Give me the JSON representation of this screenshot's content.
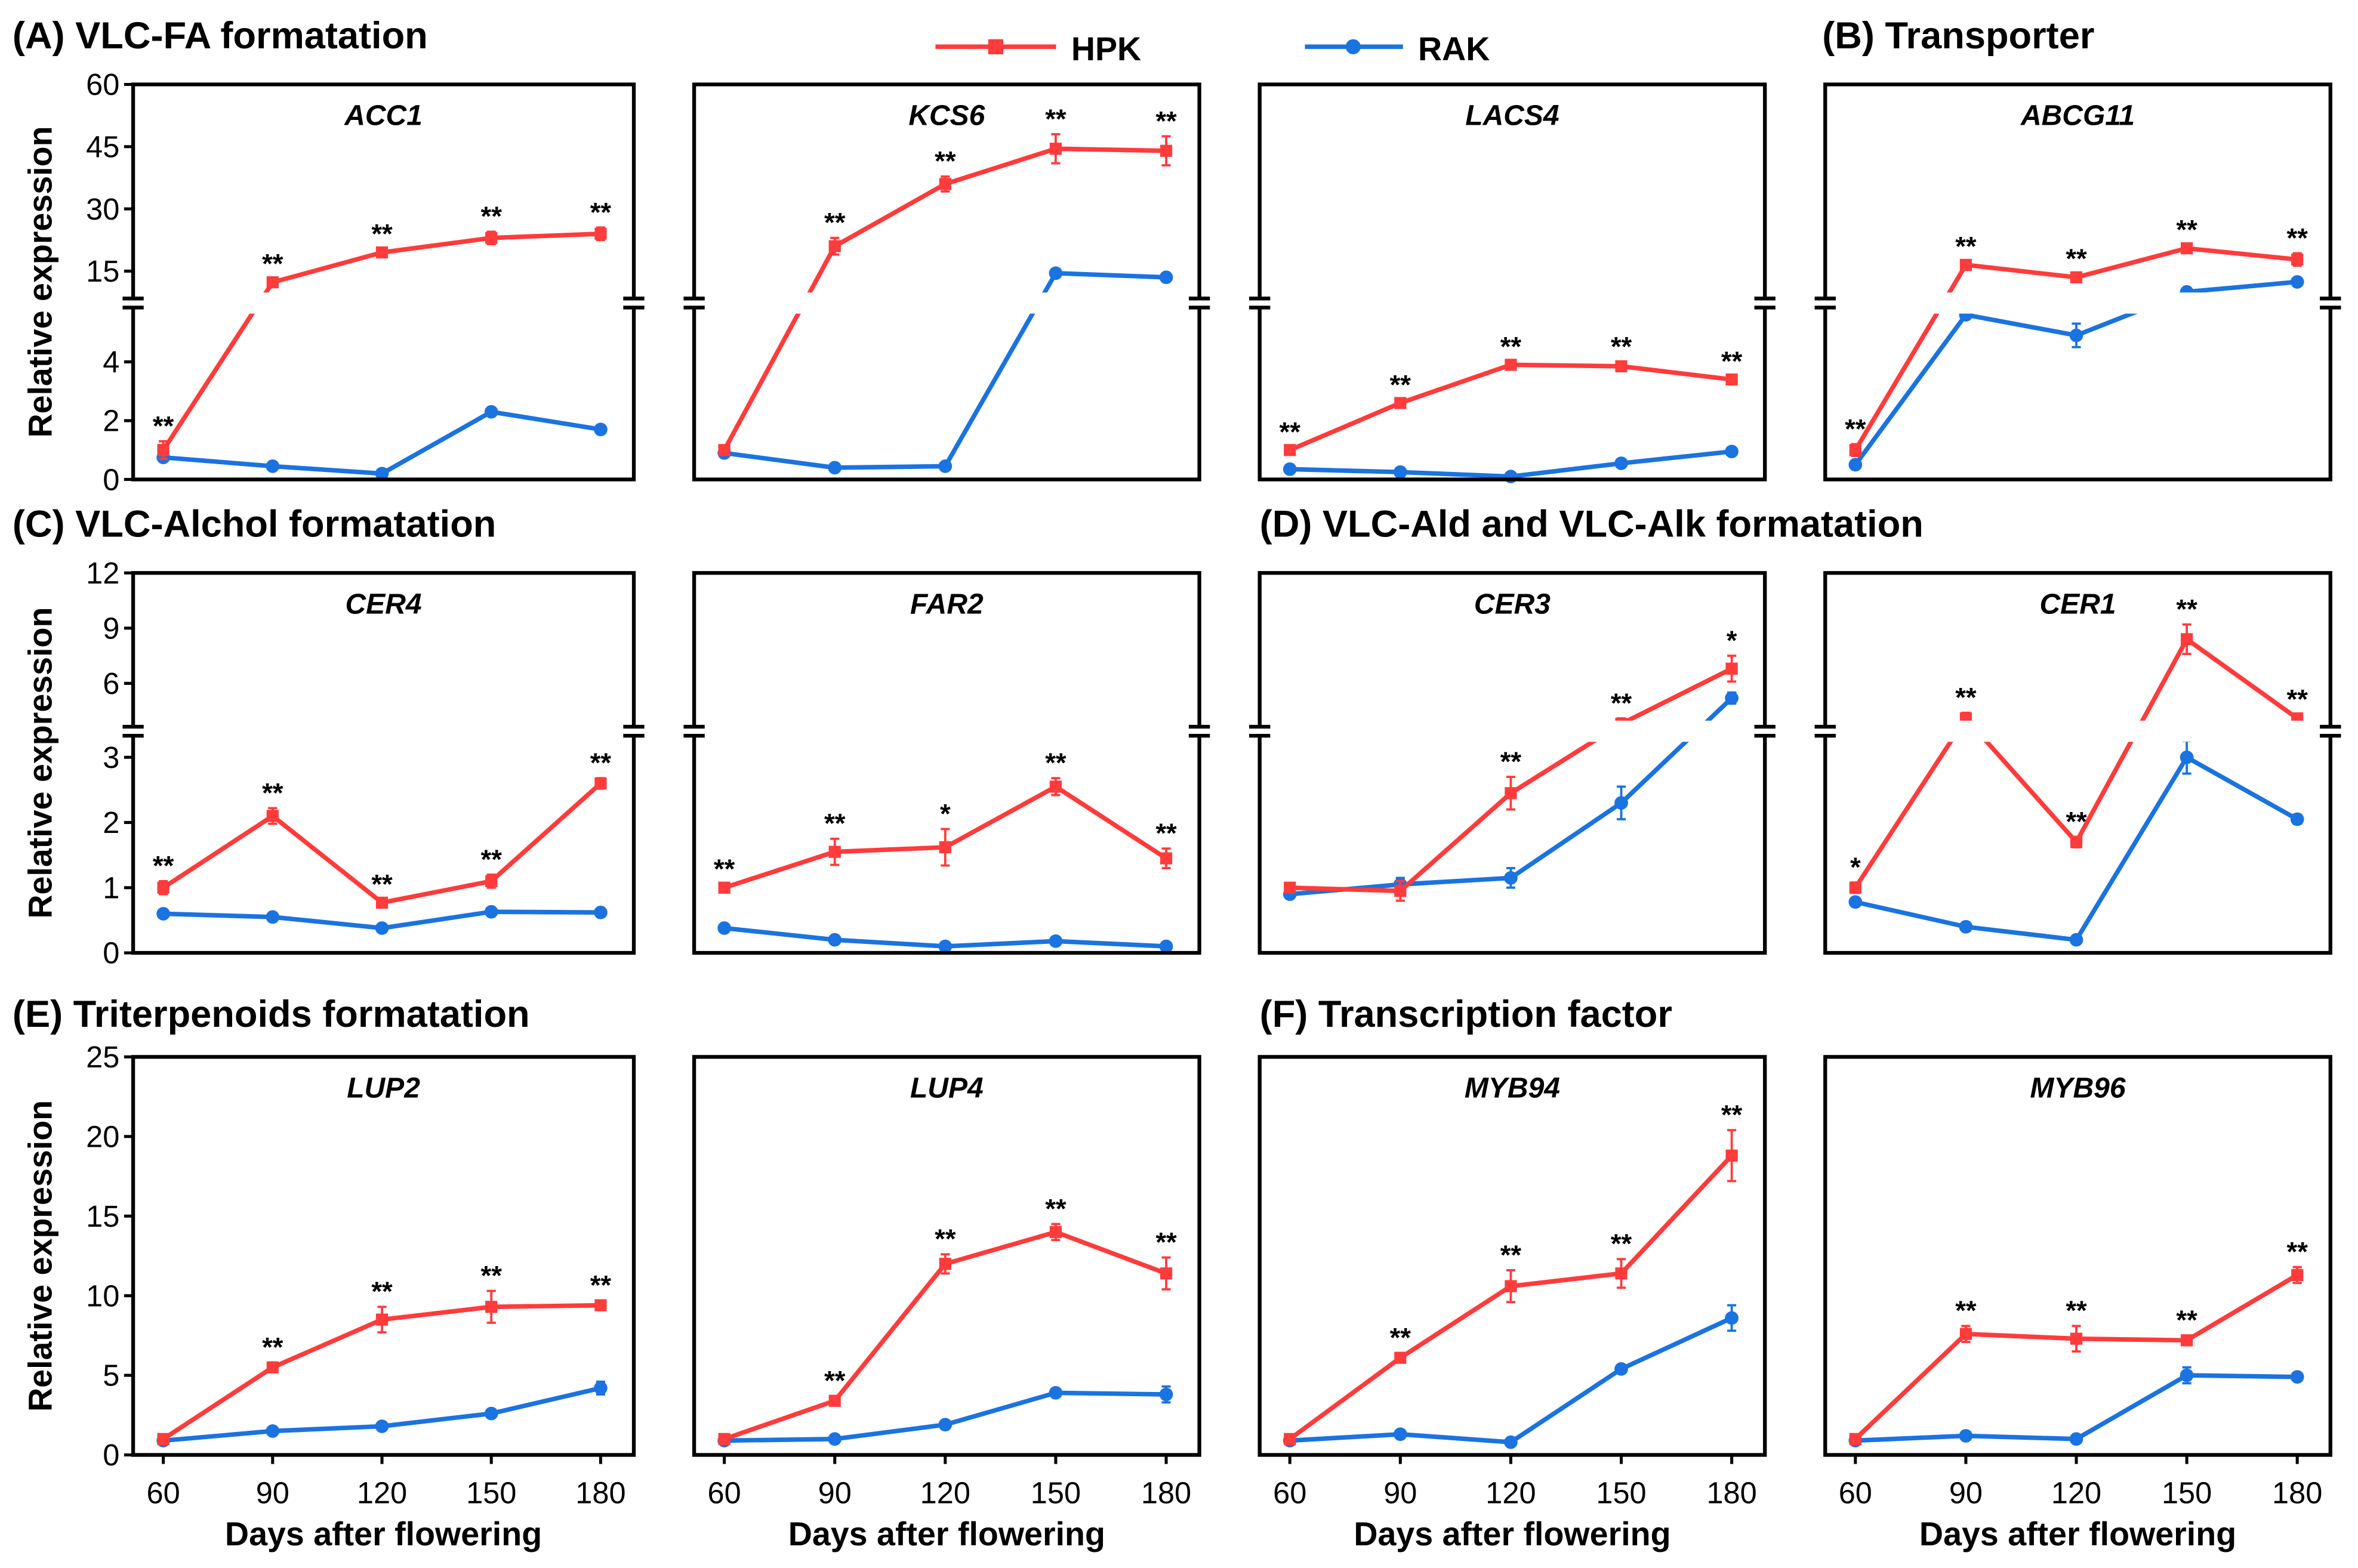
{
  "legend": {
    "hpk": "HPK",
    "rak": "RAK"
  },
  "colors": {
    "hpk": "#ff3b3b",
    "rak": "#1a73e0"
  },
  "sections": [
    "(A) VLC-FA formatation",
    "(B) Transporter",
    "(C) VLC-Alchol formatation",
    "(D) VLC-Ald and VLC-Alk formatation",
    "(E) Triterpenoids formatation",
    "(F) Transcription factor"
  ],
  "chart_data": [
    {
      "type": "line",
      "row": 1,
      "title": "ACC1",
      "xlabel": "",
      "ylabel": "Relative expression",
      "x": [
        60,
        90,
        120,
        150,
        180
      ],
      "y_axis": {
        "broken": true,
        "lower_ticks": [
          0,
          2,
          4
        ],
        "upper_ticks": [
          15,
          30,
          45,
          60
        ]
      },
      "series": [
        {
          "name": "HPK",
          "values": [
            1,
            12.3,
            19.5,
            23,
            24
          ],
          "errors": [
            0.3,
            0.8,
            0.8,
            1.5,
            1.5
          ],
          "significance": [
            "**",
            "**",
            "**",
            "**",
            "**"
          ]
        },
        {
          "name": "RAK",
          "values": [
            0.75,
            0.45,
            0.2,
            2.3,
            1.7
          ],
          "errors": [
            0.08,
            0.05,
            0.05,
            0.1,
            0.1
          ]
        }
      ]
    },
    {
      "type": "line",
      "row": 1,
      "title": "KCS6",
      "xlabel": "",
      "ylabel": "",
      "x": [
        60,
        90,
        120,
        150,
        180
      ],
      "y_axis": {
        "broken": true,
        "lower_ticks": [
          0,
          2,
          4
        ],
        "upper_ticks": [
          15,
          30,
          45,
          60
        ]
      },
      "series": [
        {
          "name": "HPK",
          "values": [
            1,
            21,
            36,
            44.5,
            44
          ],
          "errors": [
            0.1,
            2,
            1.8,
            3.5,
            3.5
          ],
          "significance": [
            "",
            "**",
            "**",
            "**",
            "**"
          ]
        },
        {
          "name": "RAK",
          "values": [
            0.9,
            0.4,
            0.45,
            14.5,
            13.5
          ],
          "errors": [
            0.05,
            0.05,
            0.05,
            1,
            0.7
          ]
        }
      ]
    },
    {
      "type": "line",
      "row": 1,
      "title": "LACS4",
      "xlabel": "",
      "ylabel": "",
      "x": [
        60,
        90,
        120,
        150,
        180
      ],
      "y_axis": {
        "broken": true,
        "lower_ticks": [
          0,
          2,
          4
        ],
        "upper_ticks": [
          15,
          30,
          45,
          60
        ]
      },
      "series": [
        {
          "name": "HPK",
          "values": [
            1,
            2.6,
            3.9,
            3.85,
            3.4
          ],
          "errors": [
            0.1,
            0.1,
            0.1,
            0.15,
            0.1
          ],
          "significance": [
            "**",
            "**",
            "**",
            "**",
            "**"
          ]
        },
        {
          "name": "RAK",
          "values": [
            0.35,
            0.25,
            0.1,
            0.55,
            0.95
          ],
          "errors": [
            0.04,
            0.03,
            0.03,
            0.05,
            0.06
          ]
        }
      ]
    },
    {
      "type": "line",
      "row": 1,
      "title": "ABCG11",
      "xlabel": "",
      "ylabel": "",
      "x": [
        60,
        90,
        120,
        150,
        180
      ],
      "y_axis": {
        "broken": true,
        "lower_ticks": [
          0,
          2,
          4
        ],
        "upper_ticks": [
          15,
          30,
          45,
          60
        ]
      },
      "series": [
        {
          "name": "HPK",
          "values": [
            1,
            16.5,
            13.5,
            20.5,
            17.8
          ],
          "errors": [
            0.2,
            0.8,
            0.8,
            0.8,
            1.5
          ],
          "significance": [
            "**",
            "**",
            "**",
            "**",
            "**"
          ]
        },
        {
          "name": "RAK",
          "values": [
            0.5,
            5.6,
            4.9,
            10,
            12.4
          ],
          "errors": [
            0.05,
            0.15,
            0.4,
            0.5,
            0.5
          ]
        }
      ]
    },
    {
      "type": "line",
      "row": 2,
      "title": "CER4",
      "xlabel": "",
      "ylabel": "Relative expression",
      "x": [
        60,
        90,
        120,
        150,
        180
      ],
      "y_axis": {
        "broken": true,
        "lower_ticks": [
          0,
          1,
          2,
          3
        ],
        "upper_ticks": [
          6,
          9,
          12
        ]
      },
      "series": [
        {
          "name": "HPK",
          "values": [
            1,
            2.1,
            0.77,
            1.1,
            2.6
          ],
          "errors": [
            0.1,
            0.12,
            0.05,
            0.1,
            0.08
          ],
          "significance": [
            "**",
            "**",
            "**",
            "**",
            "**"
          ]
        },
        {
          "name": "RAK",
          "values": [
            0.6,
            0.55,
            0.38,
            0.63,
            0.62
          ],
          "errors": [
            0.03,
            0.03,
            0.03,
            0.04,
            0.03
          ]
        }
      ]
    },
    {
      "type": "line",
      "row": 2,
      "title": "FAR2",
      "xlabel": "",
      "ylabel": "",
      "x": [
        60,
        90,
        120,
        150,
        180
      ],
      "y_axis": {
        "broken": true,
        "lower_ticks": [
          0,
          1,
          2,
          3
        ],
        "upper_ticks": [
          6,
          9,
          12
        ]
      },
      "series": [
        {
          "name": "HPK",
          "values": [
            1,
            1.55,
            1.62,
            2.55,
            1.45
          ],
          "errors": [
            0.05,
            0.2,
            0.28,
            0.13,
            0.15
          ],
          "significance": [
            "**",
            "**",
            "*",
            "**",
            "**"
          ]
        },
        {
          "name": "RAK",
          "values": [
            0.38,
            0.2,
            0.1,
            0.18,
            0.1
          ],
          "errors": [
            0.02,
            0.02,
            0.02,
            0.02,
            0.02
          ]
        }
      ]
    },
    {
      "type": "line",
      "row": 2,
      "title": "CER3",
      "xlabel": "",
      "ylabel": "",
      "x": [
        60,
        90,
        120,
        150,
        180
      ],
      "y_axis": {
        "broken": true,
        "lower_ticks": [
          0,
          1,
          2,
          3
        ],
        "upper_ticks": [
          6,
          9,
          12
        ]
      },
      "series": [
        {
          "name": "HPK",
          "values": [
            1,
            0.95,
            2.45,
            3.8,
            6.8
          ],
          "errors": [
            0.05,
            0.15,
            0.25,
            0.3,
            0.7
          ],
          "significance": [
            "",
            "",
            "**",
            "**",
            "*"
          ]
        },
        {
          "name": "RAK",
          "values": [
            0.9,
            1.05,
            1.15,
            2.3,
            5.2
          ],
          "errors": [
            0.05,
            0.1,
            0.15,
            0.25,
            0.3
          ]
        }
      ]
    },
    {
      "type": "line",
      "row": 2,
      "title": "CER1",
      "xlabel": "",
      "ylabel": "",
      "x": [
        60,
        90,
        120,
        150,
        180
      ],
      "y_axis": {
        "broken": true,
        "lower_ticks": [
          0,
          1,
          2,
          3
        ],
        "upper_ticks": [
          6,
          9,
          12
        ]
      },
      "series": [
        {
          "name": "HPK",
          "values": [
            1,
            4.1,
            1.7,
            8.4,
            4.1
          ],
          "errors": [
            0.08,
            0.3,
            0.08,
            0.8,
            0.2
          ],
          "significance": [
            "*",
            "**",
            "**",
            "**",
            "**"
          ]
        },
        {
          "name": "RAK",
          "values": [
            0.78,
            0.4,
            0.2,
            3.0,
            2.05
          ],
          "errors": [
            0.05,
            0.03,
            0.03,
            0.25,
            0.07
          ]
        }
      ]
    },
    {
      "type": "line",
      "row": 3,
      "title": "LUP2",
      "xlabel": "Days after flowering",
      "ylabel": "Relative expression",
      "x": [
        60,
        90,
        120,
        150,
        180
      ],
      "y_axis": {
        "broken": false,
        "ylim": [
          0,
          25
        ],
        "ticks": [
          0,
          5,
          10,
          15,
          20,
          25
        ]
      },
      "series": [
        {
          "name": "HPK",
          "values": [
            1,
            5.5,
            8.5,
            9.3,
            9.4
          ],
          "errors": [
            0.1,
            0.3,
            0.8,
            1,
            0.3
          ],
          "significance": [
            "",
            "**",
            "**",
            "**",
            "**"
          ]
        },
        {
          "name": "RAK",
          "values": [
            0.9,
            1.5,
            1.8,
            2.6,
            4.2
          ],
          "errors": [
            0.05,
            0.1,
            0.1,
            0.15,
            0.4
          ]
        }
      ]
    },
    {
      "type": "line",
      "row": 3,
      "title": "LUP4",
      "xlabel": "Days after flowering",
      "ylabel": "",
      "x": [
        60,
        90,
        120,
        150,
        180
      ],
      "y_axis": {
        "broken": false,
        "ylim": [
          0,
          25
        ],
        "ticks": [
          0,
          5,
          10,
          15,
          20,
          25
        ]
      },
      "series": [
        {
          "name": "HPK",
          "values": [
            1,
            3.4,
            12,
            14,
            11.4
          ],
          "errors": [
            0.1,
            0.3,
            0.6,
            0.5,
            1
          ],
          "significance": [
            "",
            "**",
            "**",
            "**",
            "**"
          ]
        },
        {
          "name": "RAK",
          "values": [
            0.9,
            1.0,
            1.9,
            3.9,
            3.8
          ],
          "errors": [
            0.05,
            0.1,
            0.1,
            0.2,
            0.5
          ]
        }
      ]
    },
    {
      "type": "line",
      "row": 3,
      "title": "MYB94",
      "xlabel": "Days after flowering",
      "ylabel": "",
      "x": [
        60,
        90,
        120,
        150,
        180
      ],
      "y_axis": {
        "broken": false,
        "ylim": [
          0,
          25
        ],
        "ticks": [
          0,
          5,
          10,
          15,
          20,
          25
        ]
      },
      "series": [
        {
          "name": "HPK",
          "values": [
            1,
            6.1,
            10.6,
            11.4,
            18.8
          ],
          "errors": [
            0.1,
            0.3,
            1,
            0.9,
            1.6
          ],
          "significance": [
            "",
            "**",
            "**",
            "**",
            "**"
          ]
        },
        {
          "name": "RAK",
          "values": [
            0.9,
            1.3,
            0.8,
            5.4,
            8.6
          ],
          "errors": [
            0.05,
            0.1,
            0.05,
            0.2,
            0.8
          ]
        }
      ]
    },
    {
      "type": "line",
      "row": 3,
      "title": "MYB96",
      "xlabel": "Days after flowering",
      "ylabel": "",
      "x": [
        60,
        90,
        120,
        150,
        180
      ],
      "y_axis": {
        "broken": false,
        "ylim": [
          0,
          25
        ],
        "ticks": [
          0,
          5,
          10,
          15,
          20,
          25
        ]
      },
      "series": [
        {
          "name": "HPK",
          "values": [
            1,
            7.6,
            7.3,
            7.2,
            11.3
          ],
          "errors": [
            0.1,
            0.5,
            0.8,
            0.3,
            0.5
          ],
          "significance": [
            "",
            "**",
            "**",
            "**",
            "**"
          ]
        },
        {
          "name": "RAK",
          "values": [
            0.9,
            1.2,
            1.0,
            5.0,
            4.9
          ],
          "errors": [
            0.05,
            0.1,
            0.05,
            0.5,
            0.2
          ]
        }
      ]
    }
  ]
}
